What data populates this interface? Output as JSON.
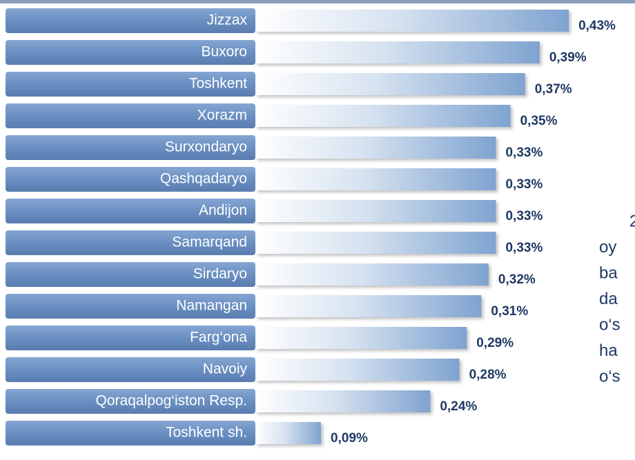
{
  "chart_data": {
    "type": "barh",
    "categories": [
      "Jizzax",
      "Buxoro",
      "Toshkent",
      "Xorazm",
      "Surxondaryo",
      "Qashqadaryo",
      "Andijon",
      "Samarqand",
      "Sirdaryo",
      "Namangan",
      "Farg‘ona",
      "Navoiy",
      "Qoraqalpog‘iston Resp.",
      "Toshkent sh."
    ],
    "values": [
      0.43,
      0.39,
      0.37,
      0.35,
      0.33,
      0.33,
      0.33,
      0.33,
      0.32,
      0.31,
      0.29,
      0.28,
      0.24,
      0.09
    ],
    "value_labels": [
      "0,43%",
      "0,39%",
      "0,37%",
      "0,35%",
      "0,33%",
      "0,33%",
      "0,33%",
      "0,33%",
      "0,32%",
      "0,31%",
      "0,29%",
      "0,28%",
      "0,24%",
      "0,09%"
    ],
    "color": "#7fa3d0",
    "xlim": [
      0,
      0.5
    ],
    "side_text": [
      "2",
      "oy",
      "ba",
      "da",
      "o‘s",
      "ha",
      "o‘s"
    ]
  }
}
